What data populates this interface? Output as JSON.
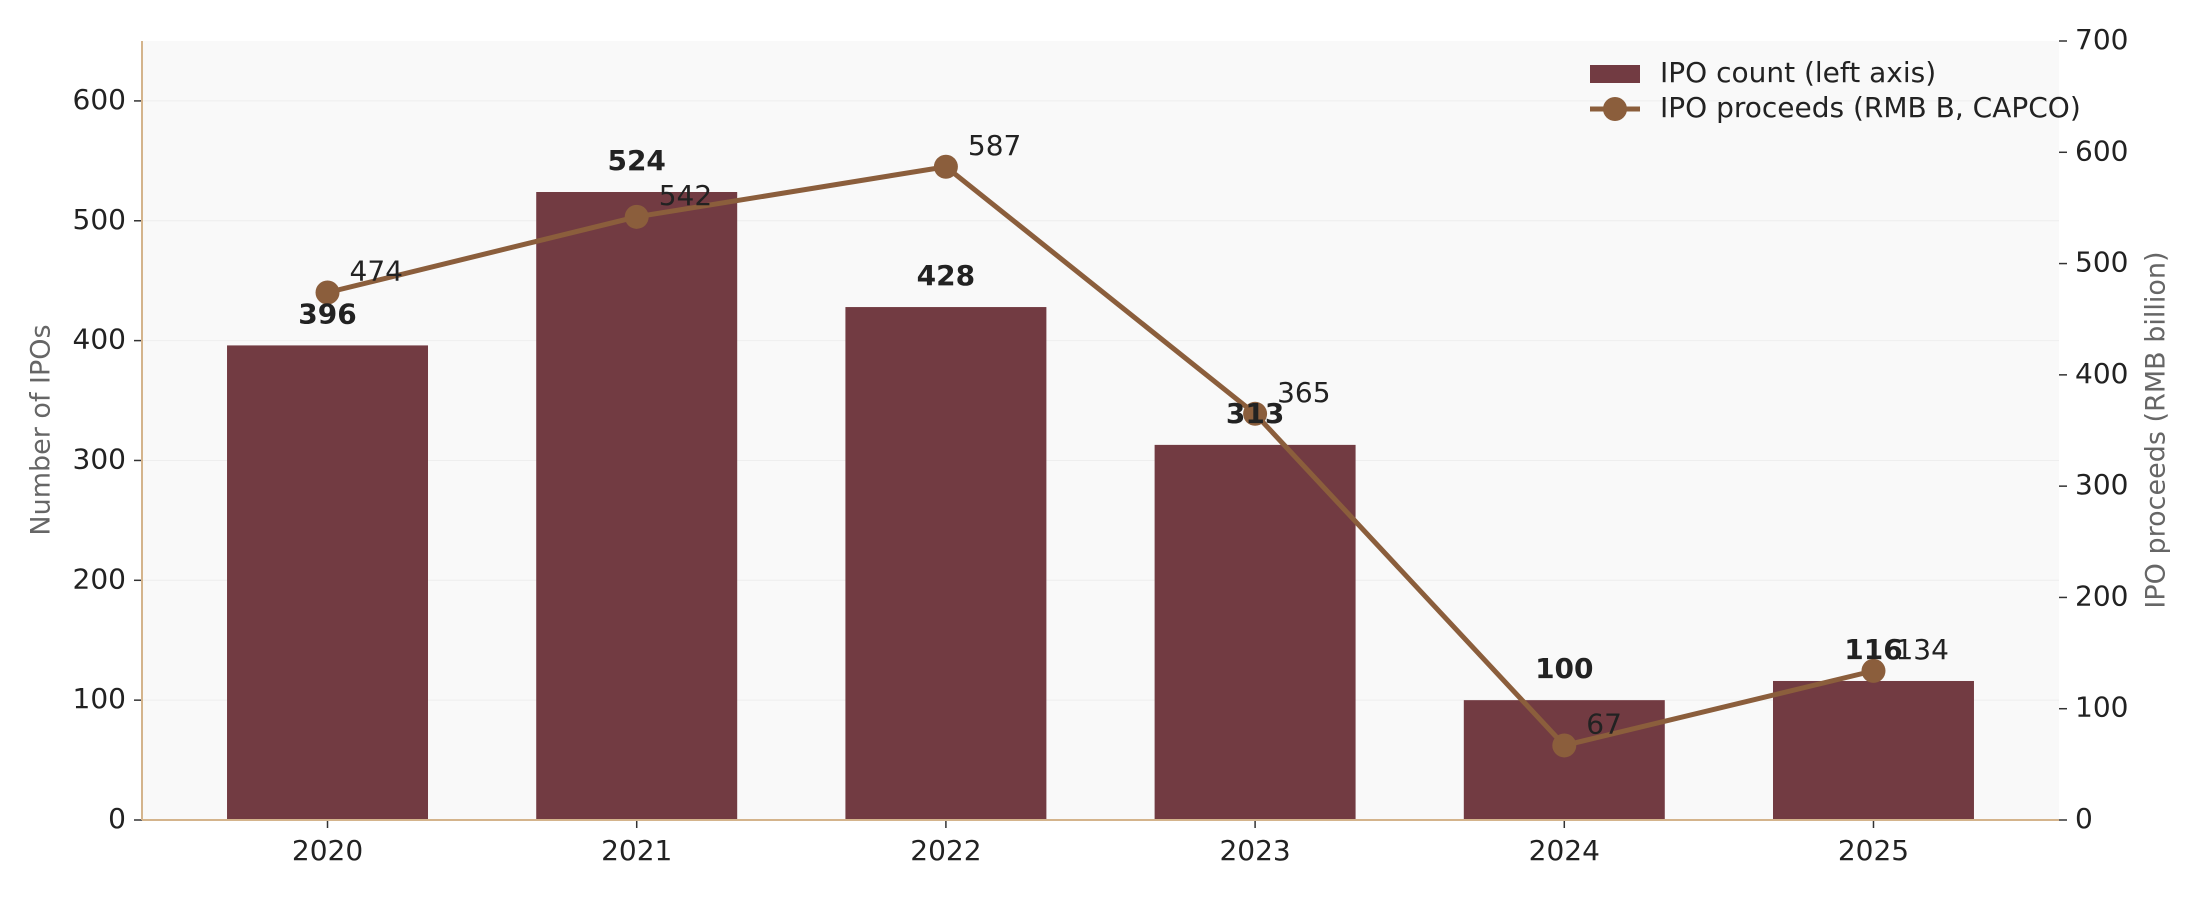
{
  "chart_data": {
    "type": "bar",
    "categories": [
      "2020",
      "2021",
      "2022",
      "2023",
      "2024",
      "2025"
    ],
    "series": [
      {
        "name": "IPO count (left axis)",
        "type": "bar",
        "color": "#723b42",
        "label_color": "#5c1a28",
        "values": [
          396,
          524,
          428,
          313,
          100,
          116
        ]
      },
      {
        "name": "IPO proceeds (RMB B, CAPCO)",
        "type": "line",
        "axis": "y2",
        "color": "#8b5e3c",
        "label_color": "#8b5e3c",
        "values": [
          474,
          542,
          587,
          365,
          67,
          134
        ]
      }
    ],
    "ylabel": "Number of IPOs",
    "y2label": "IPO proceeds (RMB billion)",
    "ylim": [
      0,
      650
    ],
    "yticks": [
      0,
      100,
      200,
      300,
      400,
      500,
      600
    ],
    "y2lim": [
      0,
      700
    ],
    "y2ticks": [
      0,
      100,
      200,
      300,
      400,
      500,
      600,
      700
    ],
    "grid": true,
    "legend": "upper right"
  }
}
